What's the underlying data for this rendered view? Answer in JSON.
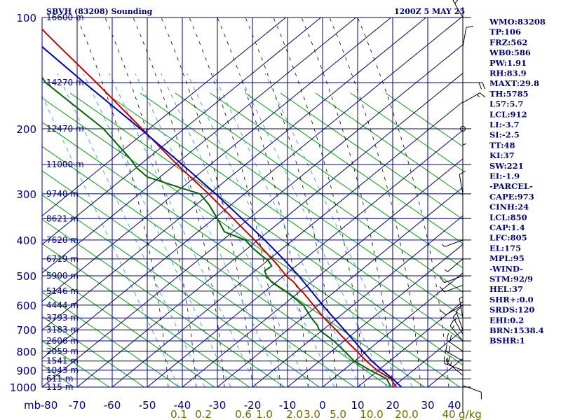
{
  "header": {
    "station_title": "SBVH (83208) Sounding",
    "time_title": "1200Z  5 MAY 25"
  },
  "chart_data": {
    "type": "skew-t log-p sounding",
    "pressure_unit": "mb",
    "pressure_ticks": [
      100,
      200,
      300,
      400,
      500,
      600,
      700,
      800,
      900,
      1000
    ],
    "pressure_range": [
      100,
      1000
    ],
    "temp_ticks": [
      -80,
      -70,
      -60,
      -50,
      -40,
      -30,
      -20,
      -10,
      0,
      10,
      20,
      30,
      40
    ],
    "temp_axis_label": "mb",
    "mixing_ratio_labels": [
      "0.1",
      "0.2",
      "0.6",
      "1.0",
      "2.0",
      "3.0",
      "5.0",
      "10.0",
      "20.0",
      "40"
    ],
    "mixing_ratio_unit": "g/kg",
    "height_labels": [
      {
        "p": 100,
        "label": "16600 m"
      },
      {
        "p": 150,
        "label": "14270 m"
      },
      {
        "p": 200,
        "label": "12470 m"
      },
      {
        "p": 250,
        "label": "11000 m"
      },
      {
        "p": 300,
        "label": "9740 m"
      },
      {
        "p": 350,
        "label": "8621 m"
      },
      {
        "p": 400,
        "label": "7620 m"
      },
      {
        "p": 450,
        "label": "6719 m"
      },
      {
        "p": 500,
        "label": "5900 m"
      },
      {
        "p": 550,
        "label": "5146 m"
      },
      {
        "p": 600,
        "label": "4444 m"
      },
      {
        "p": 650,
        "label": "3793 m"
      },
      {
        "p": 700,
        "label": "3183 m"
      },
      {
        "p": 750,
        "label": "2606 m"
      },
      {
        "p": 800,
        "label": "2059 m"
      },
      {
        "p": 850,
        "label": "1541 m"
      },
      {
        "p": 900,
        "label": "1043 m"
      },
      {
        "p": 950,
        "label": "611 m"
      },
      {
        "p": 1000,
        "label": "115 m"
      }
    ],
    "series": [
      {
        "name": "temperature",
        "color": "#cc0000",
        "points": [
          [
            1000,
            23
          ],
          [
            950,
            21.5
          ],
          [
            925,
            19.5
          ],
          [
            900,
            17.5
          ],
          [
            850,
            14.5
          ],
          [
            800,
            11.8
          ],
          [
            750,
            8.8
          ],
          [
            700,
            5.8
          ],
          [
            650,
            2.4
          ],
          [
            600,
            -0.6
          ],
          [
            560,
            -3.2
          ],
          [
            540,
            -4.8
          ],
          [
            520,
            -6.2
          ],
          [
            500,
            -8.4
          ],
          [
            470,
            -10.6
          ],
          [
            450,
            -12.4
          ],
          [
            400,
            -17.4
          ],
          [
            350,
            -23.5
          ],
          [
            300,
            -30.5
          ],
          [
            250,
            -39.5
          ],
          [
            200,
            -49.5
          ],
          [
            150,
            -62.5
          ],
          [
            120,
            -73
          ],
          [
            110,
            -77
          ],
          [
            100,
            -81
          ]
        ]
      },
      {
        "name": "dewpoint",
        "color": "#006600",
        "points": [
          [
            1000,
            21.5
          ],
          [
            950,
            20.3
          ],
          [
            925,
            18.0
          ],
          [
            900,
            15.5
          ],
          [
            850,
            11.0
          ],
          [
            800,
            8.3
          ],
          [
            750,
            5.2
          ],
          [
            700,
            1.0
          ],
          [
            680,
            0.5
          ],
          [
            650,
            -1.2
          ],
          [
            600,
            -3.5
          ],
          [
            580,
            -5.5
          ],
          [
            555,
            -8.0
          ],
          [
            540,
            -10.0
          ],
          [
            520,
            -12.5
          ],
          [
            500,
            -14.0
          ],
          [
            485,
            -14.5
          ],
          [
            470,
            -12.5
          ],
          [
            455,
            -13.5
          ],
          [
            440,
            -15.5
          ],
          [
            420,
            -18.0
          ],
          [
            400,
            -20.0
          ],
          [
            380,
            -26.0
          ],
          [
            350,
            -28.0
          ],
          [
            320,
            -30.5
          ],
          [
            300,
            -33.0
          ],
          [
            290,
            -38.0
          ],
          [
            270,
            -48.0
          ],
          [
            255,
            -51.0
          ],
          [
            240,
            -53.0
          ],
          [
            200,
            -60.5
          ],
          [
            150,
            -77.0
          ],
          [
            120,
            -84.0
          ],
          [
            110,
            -84.5
          ],
          [
            100,
            -84.5
          ]
        ]
      },
      {
        "name": "parcel",
        "color": "#0000bb",
        "points": [
          [
            1000,
            24.5
          ],
          [
            950,
            22.0
          ],
          [
            900,
            19.0
          ],
          [
            850,
            16.0
          ],
          [
            800,
            13.5
          ],
          [
            750,
            11.0
          ],
          [
            700,
            8.2
          ],
          [
            650,
            5.2
          ],
          [
            600,
            2.0
          ],
          [
            550,
            -1.2
          ],
          [
            500,
            -4.8
          ],
          [
            450,
            -9.2
          ],
          [
            400,
            -14.5
          ],
          [
            350,
            -21.0
          ],
          [
            300,
            -28.5
          ],
          [
            250,
            -38.0
          ],
          [
            200,
            -50.0
          ],
          [
            150,
            -66.0
          ],
          [
            120,
            -78.0
          ],
          [
            110,
            -82.0
          ],
          [
            100,
            -86.0
          ]
        ]
      }
    ],
    "winds": [
      {
        "p": 990,
        "dir": 110,
        "spd": 10
      },
      {
        "p": 930,
        "dir": 310,
        "spd": 15
      },
      {
        "p": 900,
        "dir": 290,
        "spd": 20
      },
      {
        "p": 850,
        "dir": 300,
        "spd": 20
      },
      {
        "p": 800,
        "dir": 305,
        "spd": 20
      },
      {
        "p": 750,
        "dir": 320,
        "spd": 15
      },
      {
        "p": 720,
        "dir": 330,
        "spd": 15
      },
      {
        "p": 700,
        "dir": 340,
        "spd": 10
      },
      {
        "p": 650,
        "dir": 350,
        "spd": 5
      },
      {
        "p": 600,
        "dir": 240,
        "spd": 10
      },
      {
        "p": 530,
        "dir": 250,
        "spd": 10
      },
      {
        "p": 500,
        "dir": 250,
        "spd": 10
      },
      {
        "p": 450,
        "dir": 230,
        "spd": 5
      },
      {
        "p": 400,
        "dir": 250,
        "spd": 5
      },
      {
        "p": 300,
        "dir": 350,
        "spd": 10
      },
      {
        "p": 250,
        "dir": 360,
        "spd": 5
      },
      {
        "p": 200,
        "dir": 0,
        "spd": 0
      },
      {
        "p": 170,
        "dir": 60,
        "spd": 15
      },
      {
        "p": 150,
        "dir": 90,
        "spd": 20
      },
      {
        "p": 120,
        "dir": 10,
        "spd": 10
      },
      {
        "p": 100,
        "dir": 330,
        "spd": 20
      }
    ]
  },
  "stats": [
    "WMO:83208",
    "TP:106",
    "FRZ:562",
    "WB0:586",
    "PW:1.91",
    "RH:83.9",
    "MAXT:29.8",
    "TH:5785",
    "L57:5.7",
    "LCL:912",
    "LI:-3.7",
    "SI:-2.5",
    "TT:48",
    "KI:37",
    "SW:221",
    "EI:-1.9",
    "-PARCEL-",
    "CAPE:973",
    "CINH:24",
    "LCL:850",
    "CAP:1.4",
    "LFC:805",
    "EL:175",
    "MPL:95",
    "-WIND-",
    "STM:92/9",
    "HEL:37",
    "SHR+:0.0",
    "SRDS:120",
    "EHI:0.2",
    "BRN:1538.4",
    "BSHR:1"
  ],
  "colors": {
    "grid": "#000080",
    "dry_adiabat": "#00a000",
    "moist_adiabat": "#000000",
    "mixing_ratio": "#3399ff",
    "temperature": "#cc0000",
    "dewpoint": "#006600",
    "parcel": "#0000bb"
  }
}
